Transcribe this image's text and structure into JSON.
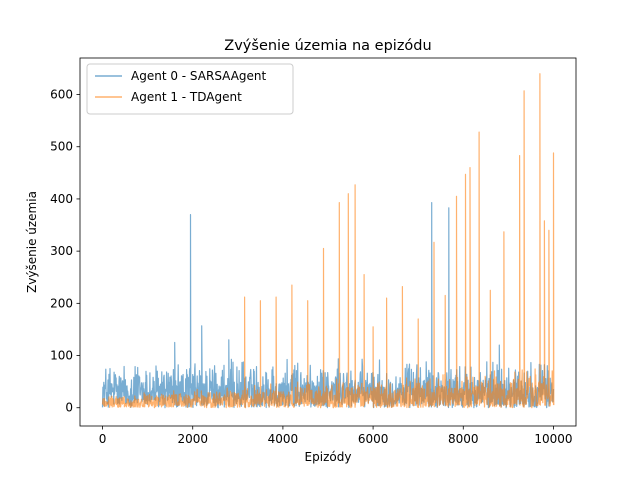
{
  "chart_data": {
    "type": "line",
    "title": "Zvýšenie územia na epizódu",
    "xlabel": "Epizódy",
    "ylabel": "Zvýšenie územia",
    "xlim": [
      -500,
      10500
    ],
    "ylim": [
      -35,
      670
    ],
    "x_ticks": [
      0,
      2000,
      4000,
      6000,
      8000,
      10000
    ],
    "y_ticks": [
      0,
      100,
      200,
      300,
      400,
      500,
      600
    ],
    "grid": false,
    "legend_position": "top-left",
    "series": [
      {
        "name": "Agent 0 - SARSAAgent",
        "color": "#1f77b4",
        "opacity": 0.6,
        "x_range": [
          0,
          10000
        ],
        "typical_range": [
          0,
          95
        ],
        "peaks": [
          {
            "x": 1950,
            "y": 370
          },
          {
            "x": 2200,
            "y": 157
          },
          {
            "x": 1600,
            "y": 125
          },
          {
            "x": 2800,
            "y": 130
          },
          {
            "x": 7300,
            "y": 393
          },
          {
            "x": 7680,
            "y": 383
          },
          {
            "x": 8800,
            "y": 120
          }
        ]
      },
      {
        "name": "Agent 1 - TDAgent",
        "color": "#ff7f0e",
        "opacity": 0.6,
        "x_range": [
          0,
          10000
        ],
        "typical_range": [
          0,
          80
        ],
        "peaks": [
          {
            "x": 3150,
            "y": 212
          },
          {
            "x": 3500,
            "y": 205
          },
          {
            "x": 3850,
            "y": 212
          },
          {
            "x": 4200,
            "y": 235
          },
          {
            "x": 4550,
            "y": 205
          },
          {
            "x": 4900,
            "y": 305
          },
          {
            "x": 5250,
            "y": 393
          },
          {
            "x": 5450,
            "y": 410
          },
          {
            "x": 5600,
            "y": 427
          },
          {
            "x": 5800,
            "y": 255
          },
          {
            "x": 6000,
            "y": 155
          },
          {
            "x": 6300,
            "y": 210
          },
          {
            "x": 6650,
            "y": 232
          },
          {
            "x": 7000,
            "y": 170
          },
          {
            "x": 7350,
            "y": 317
          },
          {
            "x": 7600,
            "y": 215
          },
          {
            "x": 7850,
            "y": 405
          },
          {
            "x": 8050,
            "y": 447
          },
          {
            "x": 8150,
            "y": 460
          },
          {
            "x": 8350,
            "y": 528
          },
          {
            "x": 8600,
            "y": 225
          },
          {
            "x": 8900,
            "y": 337
          },
          {
            "x": 9250,
            "y": 483
          },
          {
            "x": 9350,
            "y": 607
          },
          {
            "x": 9700,
            "y": 640
          },
          {
            "x": 9800,
            "y": 358
          },
          {
            "x": 9900,
            "y": 340
          },
          {
            "x": 10000,
            "y": 488
          }
        ]
      }
    ]
  }
}
